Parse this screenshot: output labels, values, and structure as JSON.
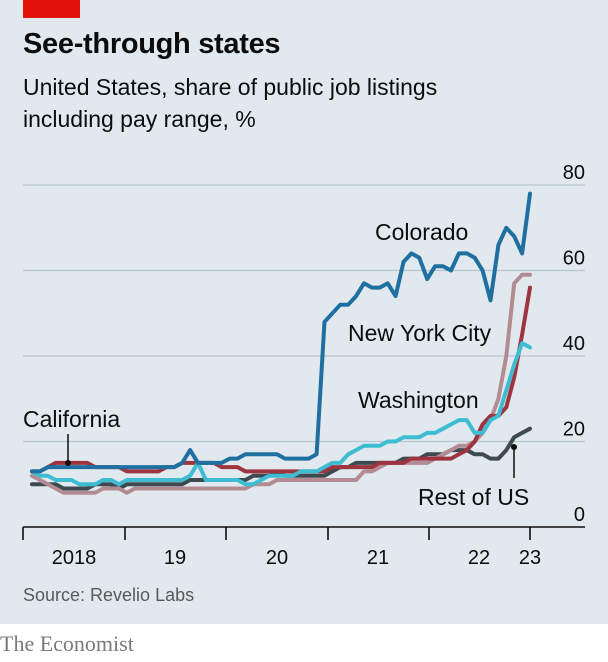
{
  "header": {
    "title": "See-through states",
    "subtitle_line1": "United States, share of public job listings",
    "subtitle_line2": "including pay range, %"
  },
  "footer": {
    "source": "Source: Revelio Labs",
    "brand": "The Economist"
  },
  "colors": {
    "brand_red": "#e3120b",
    "panel_bg": "#e1e9ef",
    "gridline": "#b7c6cf"
  },
  "chart_data": {
    "type": "line",
    "title": "See-through states",
    "subtitle": "United States, share of public job listings including pay range, %",
    "ylim": [
      0,
      80
    ],
    "y_ticks": [
      "0",
      "20",
      "40",
      "60",
      "80"
    ],
    "grid": true,
    "x_tick_labels": [
      "2018",
      "19",
      "20",
      "21",
      "22",
      "23"
    ],
    "x_start": 2018.0,
    "x_step_months": 1,
    "series": [
      {
        "name": "Rest of US",
        "color": "#3d4a4f",
        "values": [
          10,
          10,
          10,
          10,
          9,
          9,
          9,
          9,
          10,
          10,
          10,
          9,
          10,
          10,
          10,
          10,
          10,
          10,
          10,
          10,
          11,
          11,
          11,
          11,
          11,
          11,
          11,
          11,
          12,
          12,
          12,
          13,
          12,
          12,
          12,
          12,
          12,
          12,
          13,
          14,
          14,
          15,
          15,
          15,
          15,
          15,
          15,
          16,
          16,
          16,
          17,
          17,
          17,
          18,
          18,
          18,
          17,
          17,
          16,
          16,
          18,
          21,
          22,
          23
        ]
      },
      {
        "name": "",
        "color": "#b38c93",
        "values": [
          12,
          11,
          10,
          9,
          8,
          8,
          8,
          8,
          8,
          9,
          9,
          9,
          8,
          9,
          9,
          9,
          9,
          9,
          9,
          9,
          9,
          9,
          9,
          9,
          9,
          9,
          9,
          9,
          10,
          10,
          10,
          11,
          11,
          11,
          11,
          11,
          11,
          11,
          11,
          11,
          11,
          11,
          13,
          13,
          14,
          15,
          15,
          15,
          15,
          15,
          15,
          16,
          17,
          18,
          19,
          19,
          20,
          22,
          25,
          30,
          40,
          57,
          59,
          59
        ]
      },
      {
        "name": "California",
        "color": "#9e3440",
        "values": [
          13,
          13,
          14,
          15,
          15,
          15,
          15,
          15,
          14,
          14,
          14,
          14,
          13,
          13,
          13,
          13,
          13,
          14,
          14,
          15,
          15,
          15,
          15,
          15,
          14,
          14,
          14,
          13,
          13,
          13,
          13,
          13,
          13,
          13,
          13,
          13,
          13,
          13,
          14,
          14,
          14,
          14,
          14,
          14,
          15,
          15,
          15,
          15,
          16,
          16,
          16,
          16,
          16,
          16,
          17,
          18,
          20,
          24,
          26,
          26,
          28,
          35,
          45,
          56
        ]
      },
      {
        "name": "Washington",
        "color": "#3ebcd2",
        "values": [
          13,
          12,
          12,
          11,
          11,
          11,
          10,
          10,
          10,
          11,
          11,
          10,
          11,
          11,
          11,
          11,
          11,
          11,
          11,
          11,
          12,
          15,
          11,
          11,
          11,
          11,
          11,
          10,
          10,
          11,
          12,
          12,
          12,
          12,
          13,
          13,
          13,
          14,
          15,
          15,
          17,
          18,
          19,
          19,
          19,
          20,
          20,
          21,
          21,
          21,
          22,
          22,
          23,
          24,
          25,
          25,
          22,
          22,
          25,
          26,
          32,
          38,
          43,
          42
        ]
      },
      {
        "name": "Colorado",
        "color": "#1f6fa0",
        "values": [
          13,
          13,
          14,
          14,
          14,
          14,
          14,
          14,
          14,
          14,
          14,
          14,
          14,
          14,
          14,
          14,
          14,
          14,
          14,
          15,
          18,
          15,
          15,
          15,
          15,
          16,
          16,
          17,
          17,
          17,
          17,
          17,
          16,
          16,
          16,
          16,
          17,
          48,
          50,
          52,
          52,
          54,
          57,
          56,
          56,
          57,
          54,
          62,
          64,
          63,
          58,
          61,
          61,
          60,
          64,
          64,
          63,
          60,
          53,
          66,
          70,
          68,
          64,
          78
        ]
      }
    ],
    "annotations": [
      "Colorado",
      "New York City",
      "Washington",
      "California",
      "Rest of US"
    ]
  }
}
